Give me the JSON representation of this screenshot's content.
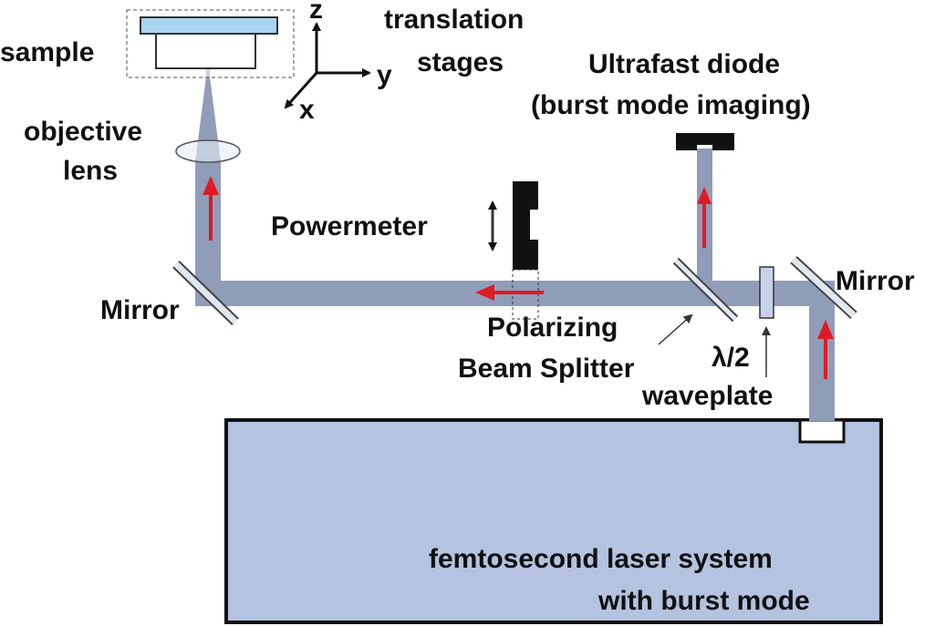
{
  "labels": {
    "sample": "sample",
    "axis_z": "z",
    "axis_y": "y",
    "axis_x": "x",
    "stages_line1": "translation",
    "stages_line2": "stages",
    "diode_line1": "Ultrafast diode",
    "diode_line2": "(burst mode imaging)",
    "objective_line1": "objective",
    "objective_line2": "lens",
    "powermeter": "Powermeter",
    "mirror_left": "Mirror",
    "mirror_right": "Mirror",
    "pbs_line1": "Polarizing",
    "pbs_line2": "Beam Splitter",
    "waveplate_line1": "λ/2",
    "waveplate_line2": "waveplate",
    "laser_line1": "femtosecond laser system",
    "laser_line2": "with burst mode"
  },
  "colors": {
    "beam": "#8f9db8",
    "laser_box": "#b3c3e0",
    "sample_plate": "#a9d4ef",
    "arrow": "#e01b24",
    "optic": "#cfdce9",
    "dark": "#111111"
  }
}
